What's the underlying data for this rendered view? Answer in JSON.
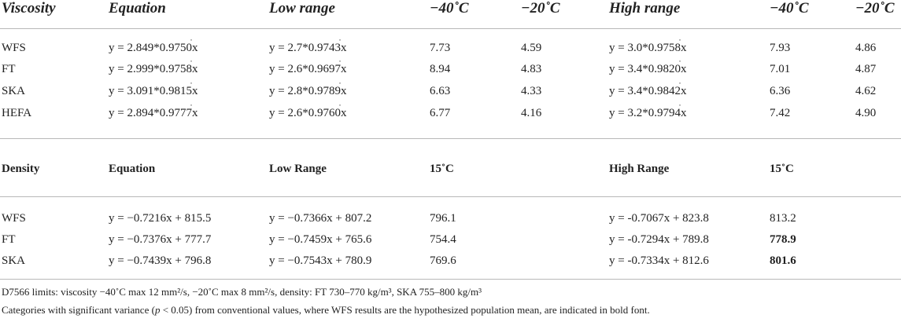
{
  "viscosity": {
    "headers": [
      "Viscosity",
      "Equation",
      "Low range",
      "−40˚C",
      "−20˚C",
      "High range",
      "−40˚C",
      "−20˚C"
    ],
    "rows": [
      [
        "WFS",
        "y = 2.849*0.9750",
        "y = 2.7*0.9743",
        "7.73",
        "4.59",
        "y = 3.0*0.9758",
        "7.93",
        "4.86"
      ],
      [
        "FT",
        "y = 2.999*0.9758",
        "y = 2.6*0.9697",
        "8.94",
        "4.83",
        "y = 3.4*0.9820",
        "7.01",
        "4.87"
      ],
      [
        "SKA",
        "y = 3.091*0.9815",
        "y = 2.8*0.9789",
        "6.63",
        "4.33",
        "y = 3.4*0.9842",
        "6.36",
        "4.62"
      ],
      [
        "HEFA",
        "y = 2.894*0.9777",
        "y = 2.6*0.9760",
        "6.77",
        "4.16",
        "y = 3.2*0.9794",
        "7.42",
        "4.90"
      ]
    ],
    "exp_var": "x"
  },
  "density": {
    "headers": [
      "Density",
      "Equation",
      "Low Range",
      "15˚C",
      "High Range",
      "15˚C"
    ],
    "rows": [
      [
        "WFS",
        "y = −0.7216x + 815.5",
        "y = −0.7366x + 807.2",
        "796.1",
        "y = -0.7067x + 823.8",
        "813.2"
      ],
      [
        "FT",
        "y = −0.7376x + 777.7",
        "y = −0.7459x + 765.6",
        "754.4",
        "y = -0.7294x + 789.8",
        "778.9"
      ],
      [
        "SKA",
        "y = −0.7439x + 796.8",
        "y = −0.7543x + 780.9",
        "769.6",
        "y = -0.7334x + 812.6",
        "801.6"
      ]
    ],
    "bold_high_values": [
      false,
      true,
      true
    ]
  },
  "notes": {
    "limits": "D7566 limits: viscosity −40˚C max 12 mm²/s, −20˚C max 8 mm²/s, density: FT 730–770 kg/m³, SKA 755–800 kg/m³",
    "significance_a": "Categories with significant variance (",
    "significance_p": "p",
    "significance_b": " < 0.05) from conventional values, where WFS results are the hypothesized population mean, are indicated in bold font."
  }
}
